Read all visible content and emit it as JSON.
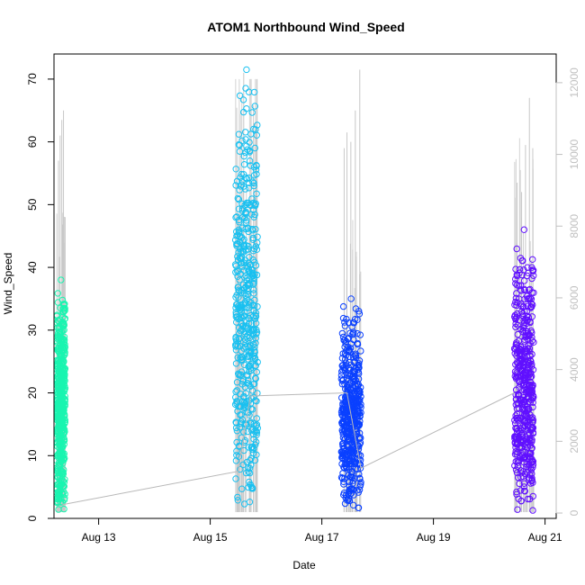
{
  "chart_data": {
    "type": "scatter",
    "title": "ATOM1 Northbound Wind_Speed",
    "xlabel": "Date",
    "ylabel": "Wind_Speed",
    "xlim": [
      12.2,
      21.2
    ],
    "ylim": [
      0,
      74
    ],
    "y2lim": [
      -150,
      12800
    ],
    "x_ticks": [
      {
        "value": 13,
        "label": "Aug 13"
      },
      {
        "value": 15,
        "label": "Aug 15"
      },
      {
        "value": 17,
        "label": "Aug 17"
      },
      {
        "value": 19,
        "label": "Aug 19"
      },
      {
        "value": 21,
        "label": "Aug 21"
      }
    ],
    "y_ticks": [
      0,
      10,
      20,
      30,
      40,
      50,
      60,
      70
    ],
    "y2_ticks": [
      0,
      2000,
      4000,
      6000,
      8000,
      10000,
      12000
    ],
    "grid": false,
    "legend": "none",
    "connecting_line_color": "#c8c8c8",
    "series": [
      {
        "x_start": 12.25,
        "x_end": 12.4,
        "y_min": 1,
        "y_max": 38,
        "color": "#19f5b0",
        "spikes": [
          [
            12.28,
            57
          ],
          [
            12.31,
            61
          ],
          [
            12.34,
            63.5
          ],
          [
            12.37,
            65
          ],
          [
            12.4,
            48
          ]
        ]
      },
      {
        "x_start": 15.45,
        "x_end": 15.85,
        "y_min": 1,
        "y_max": 71.5,
        "color": "#19c0f0",
        "spikes": [
          [
            15.5,
            48.5
          ],
          [
            15.6,
            71
          ],
          [
            15.7,
            47
          ],
          [
            15.78,
            63
          ],
          [
            15.82,
            62
          ]
        ]
      },
      {
        "x_start": 17.35,
        "x_end": 17.7,
        "y_min": 1,
        "y_max": 35,
        "color": "#0a40ff",
        "spikes": [
          [
            17.4,
            59
          ],
          [
            17.45,
            61.5
          ],
          [
            17.52,
            60
          ],
          [
            17.6,
            65
          ],
          [
            17.68,
            71.5
          ]
        ]
      },
      {
        "x_start": 20.45,
        "x_end": 20.8,
        "y_min": 1,
        "y_max": 46,
        "color": "#6010ff",
        "spikes": [
          [
            20.5,
            53.5
          ],
          [
            20.58,
            52
          ],
          [
            20.65,
            59.5
          ],
          [
            20.72,
            67
          ],
          [
            20.78,
            59
          ]
        ]
      }
    ],
    "trend_line": [
      [
        12.35,
        2.2
      ],
      [
        15.5,
        7.5
      ],
      [
        15.72,
        19.5
      ],
      [
        17.45,
        20
      ],
      [
        17.7,
        8
      ],
      [
        20.45,
        20
      ]
    ]
  }
}
